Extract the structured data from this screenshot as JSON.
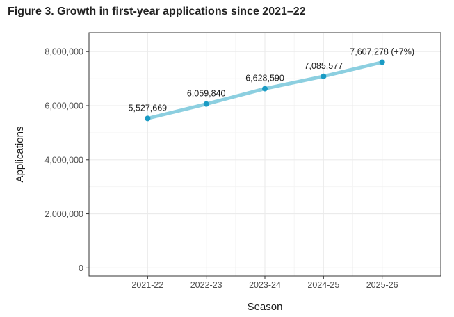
{
  "figure": {
    "title": "Figure 3. Growth in first-year applications since 2021–22"
  },
  "chart_data": {
    "type": "line",
    "title": "Figure 3. Growth in first-year applications since 2021–22",
    "xlabel": "Season",
    "ylabel": "Applications",
    "categories": [
      "2021-22",
      "2022-23",
      "2023-24",
      "2024-25",
      "2025-26"
    ],
    "series": [
      {
        "name": "Applications",
        "values": [
          5527669,
          6059840,
          6628590,
          7085577,
          7607278
        ]
      }
    ],
    "data_labels": [
      "5,527,669",
      "6,059,840",
      "6,628,590",
      "7,085,577",
      "7,607,278 (+7%)"
    ],
    "ylim": [
      -300000,
      8700000
    ],
    "yticks": [
      0,
      2000000,
      4000000,
      6000000,
      8000000
    ],
    "ytick_labels": [
      "0",
      "2,000,000",
      "4,000,000",
      "6,000,000",
      "8,000,000"
    ],
    "grid": true,
    "colors": {
      "line": "#8ccfe0",
      "point": "#1a9bc4",
      "grid": "#ebebeb",
      "panel_border": "#333333"
    }
  }
}
